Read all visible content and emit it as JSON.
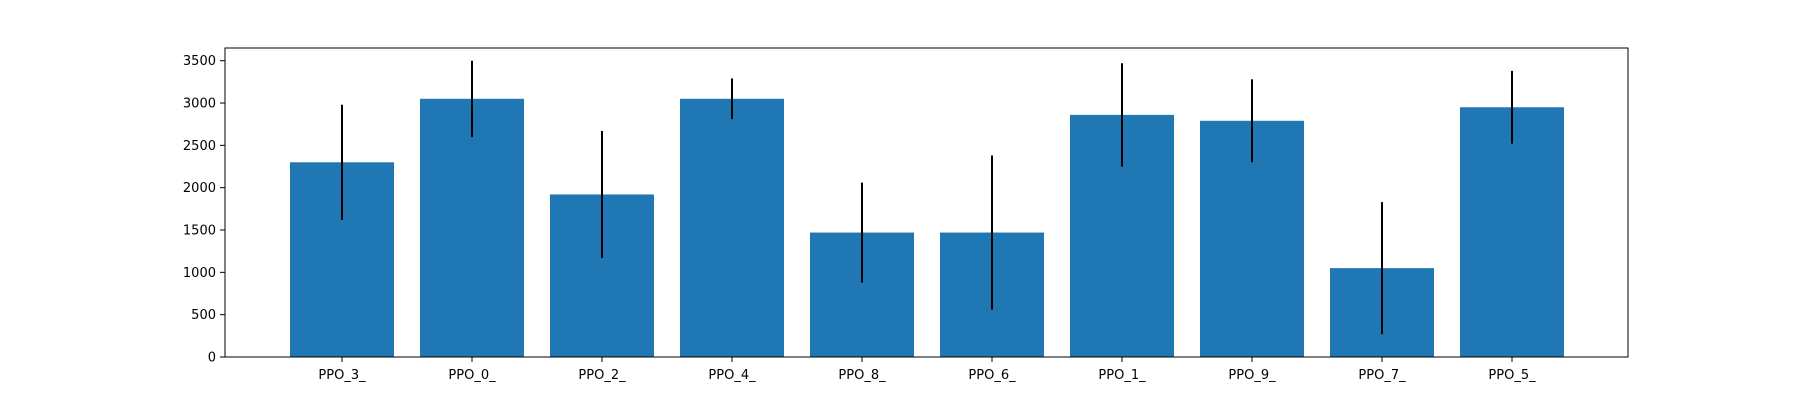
{
  "chart_data": {
    "type": "bar",
    "title": "",
    "xlabel": "",
    "ylabel": "",
    "categories": [
      "PPO_3_",
      "PPO_0_",
      "PPO_2_",
      "PPO_4_",
      "PPO_8_",
      "PPO_6_",
      "PPO_1_",
      "PPO_9_",
      "PPO_7_",
      "PPO_5_"
    ],
    "values": [
      2300,
      3050,
      1920,
      3050,
      1470,
      1470,
      2860,
      2790,
      1050,
      2950
    ],
    "errors": [
      680,
      450,
      750,
      240,
      590,
      910,
      610,
      490,
      780,
      430
    ],
    "ylim": [
      0,
      3650
    ],
    "yticks": [
      0,
      500,
      1000,
      1500,
      2000,
      2500,
      3000,
      3500
    ],
    "grid": false,
    "legend": "none",
    "bar_color": "#1f77b4",
    "error_color": "#000000"
  }
}
